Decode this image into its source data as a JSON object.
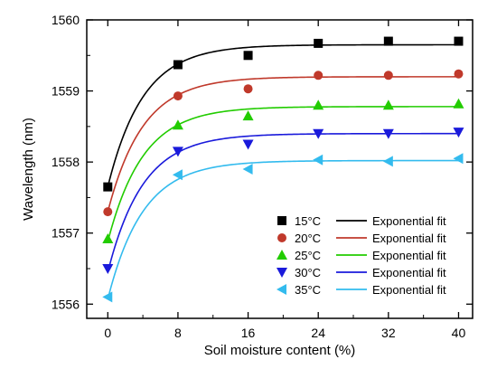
{
  "chart_data": {
    "type": "scatter",
    "xlabel": "Soil moisture content (%)",
    "ylabel": "Wavelength (nm)",
    "x": [
      0,
      8,
      16,
      24,
      32,
      40
    ],
    "x_ticks": [
      0,
      8,
      16,
      24,
      32,
      40
    ],
    "y_ticks": [
      1556,
      1557,
      1558,
      1559,
      1560
    ],
    "xlim": [
      -2.4,
      41.6
    ],
    "ylim": [
      1555.8,
      1560.0
    ],
    "legend_placement": "bottom-right",
    "fit_label": "Exponential fit",
    "series": [
      {
        "name": "15°C",
        "marker": "square",
        "color": "#000000",
        "values": [
          1557.65,
          1559.37,
          1559.5,
          1559.67,
          1559.7,
          1559.7
        ],
        "fit": {
          "y0": 1559.65,
          "A": 2.0,
          "t": 4.0
        }
      },
      {
        "name": "20°C",
        "marker": "circle",
        "color": "#c0392b",
        "values": [
          1557.3,
          1558.93,
          1559.03,
          1559.22,
          1559.22,
          1559.24
        ],
        "fit": {
          "y0": 1559.2,
          "A": 1.9,
          "t": 4.0
        }
      },
      {
        "name": "25°C",
        "marker": "triangle-up",
        "color": "#22cc00",
        "values": [
          1556.92,
          1558.52,
          1558.65,
          1558.8,
          1558.8,
          1558.82
        ],
        "fit": {
          "y0": 1558.78,
          "A": 1.9,
          "t": 4.0
        }
      },
      {
        "name": "30°C",
        "marker": "triangle-down",
        "color": "#1a1adb",
        "values": [
          1556.5,
          1558.15,
          1558.25,
          1558.4,
          1558.4,
          1558.42
        ],
        "fit": {
          "y0": 1558.4,
          "A": 1.95,
          "t": 4.0
        }
      },
      {
        "name": "35°C",
        "marker": "triangle-left",
        "color": "#33bbee",
        "values": [
          1556.1,
          1557.82,
          1557.9,
          1558.03,
          1558.01,
          1558.05
        ],
        "fit": {
          "y0": 1558.02,
          "A": 1.95,
          "t": 4.0
        }
      }
    ]
  }
}
